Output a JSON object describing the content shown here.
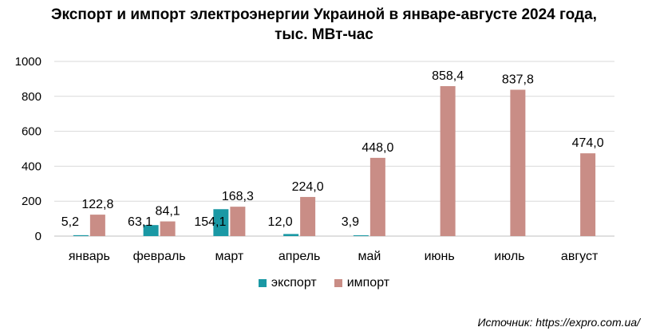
{
  "title_line1": "Экспорт и импорт электроэнергии Украиной в январе-августе 2024 года,",
  "title_line2": "тыс. МВт-час",
  "source": "Источник: https://expro.com.ua/",
  "colors": {
    "export": "#1a98a4",
    "import": "#c98d86",
    "grid": "#d9d9d9",
    "axis": "#bfbfbf"
  },
  "chart_data": {
    "type": "bar",
    "title": "Экспорт и импорт электроэнергии Украиной в январе-августе 2024 года, тыс. МВт-час",
    "categories": [
      "январь",
      "февраль",
      "март",
      "апрель",
      "май",
      "июнь",
      "июль",
      "август"
    ],
    "series": [
      {
        "name": "экспорт",
        "values": [
          5.2,
          63.1,
          154.1,
          12.0,
          3.9,
          null,
          null,
          null
        ],
        "labels": [
          "5,2",
          "63,1",
          "154,1",
          "12,0",
          "3,9",
          "",
          "",
          ""
        ]
      },
      {
        "name": "импорт",
        "values": [
          122.8,
          84.1,
          168.3,
          224.0,
          448.0,
          858.4,
          837.8,
          474.0
        ],
        "labels": [
          "122,8",
          "84,1",
          "168,3",
          "224,0",
          "448,0",
          "858,4",
          "837,8",
          "474,0"
        ]
      }
    ],
    "ylim": [
      0,
      1000
    ],
    "yticks": [
      0,
      200,
      400,
      600,
      800,
      1000
    ],
    "grid": true,
    "legend": "bottom"
  }
}
